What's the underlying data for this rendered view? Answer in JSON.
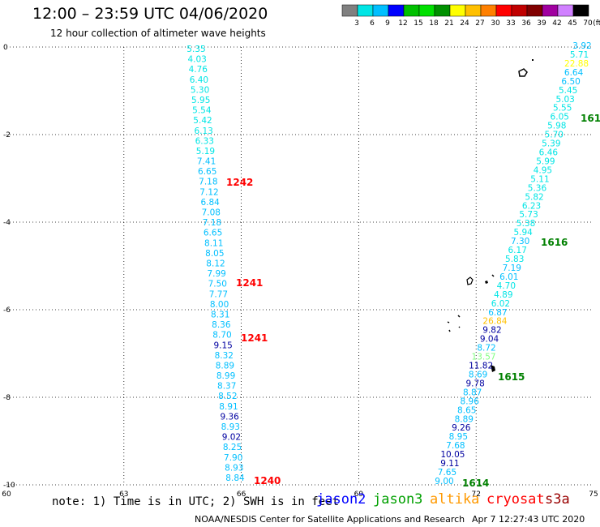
{
  "header": {
    "title": "12:00 – 23:59 UTC 04/06/2020",
    "subtitle": "12 hour collection of altimeter wave heights"
  },
  "legend": {
    "unit": "(ft)",
    "ticks": [
      "3",
      "6",
      "9",
      "12",
      "15",
      "18",
      "21",
      "24",
      "27",
      "30",
      "33",
      "36",
      "39",
      "42",
      "45",
      "70"
    ],
    "colors": [
      "#808080",
      "#00e5e5",
      "#00bfff",
      "#0000ff",
      "#00c000",
      "#00e000",
      "#009000",
      "#ffff00",
      "#ffc000",
      "#ff8000",
      "#ff0000",
      "#c00000",
      "#800000",
      "#a000a0",
      "#d080ff",
      "#000000"
    ]
  },
  "axes": {
    "x_ticks": [
      "60",
      "63",
      "66",
      "69",
      "72",
      "75"
    ],
    "y_ticks": [
      "0",
      "-2",
      "-4",
      "-6",
      "-8",
      "-10"
    ]
  },
  "tracks": [
    {
      "name": "left",
      "values": [
        "5.35",
        "4.03",
        "4.76",
        "6.40",
        "5.30",
        "5.95",
        "5.54",
        "5.42",
        "6.13",
        "6.33",
        "5.19",
        "7.41",
        "6.65",
        "7.18",
        "7.12",
        "6.84",
        "7.08",
        "7.18",
        "6.65",
        "8.11",
        "8.05",
        "8.12",
        "7.99",
        "7.50",
        "7.77",
        "8.00",
        "8.31",
        "8.36",
        "8.70",
        "9.15",
        "8.32",
        "8.89",
        "8.99",
        "8.37",
        "8.52",
        "8.91",
        "9.36",
        "8.93",
        "9.02",
        "8.25",
        "7.90",
        "8.93",
        "8.84"
      ],
      "colors": [
        "#00e5e5",
        "#00e5e5",
        "#00e5e5",
        "#00e5e5",
        "#00e5e5",
        "#00e5e5",
        "#00e5e5",
        "#00e5e5",
        "#00e5e5",
        "#00e5e5",
        "#00e5e5",
        "#00bfff",
        "#00bfff",
        "#00bfff",
        "#00bfff",
        "#00bfff",
        "#00bfff",
        "#00bfff",
        "#00bfff",
        "#00bfff",
        "#00bfff",
        "#00bfff",
        "#00bfff",
        "#00bfff",
        "#00bfff",
        "#00bfff",
        "#00bfff",
        "#00bfff",
        "#00bfff",
        "#0000a0",
        "#00bfff",
        "#00bfff",
        "#00bfff",
        "#00bfff",
        "#00bfff",
        "#00bfff",
        "#0000a0",
        "#00bfff",
        "#0000a0",
        "#00bfff",
        "#00bfff",
        "#00bfff",
        "#00bfff"
      ]
    },
    {
      "name": "right",
      "values": [
        "3.92",
        "5.71",
        "22.88",
        "6.64",
        "6.50",
        "5.45",
        "5.03",
        "5.55",
        "6.05",
        "5.98",
        "5.70",
        "5.39",
        "6.46",
        "5.99",
        "4.95",
        "5.11",
        "5.36",
        "5.82",
        "6.23",
        "5.73",
        "5.38",
        "5.94",
        "7.30",
        "6.17",
        "5.83",
        "7.19",
        "6.01",
        "4.70",
        "4.89",
        "6.02",
        "6.87",
        "26.84",
        "9.82",
        "9.04",
        "8.72",
        "13.57",
        "11.82",
        "8.69",
        "9.78",
        "8.87",
        "8.96",
        "8.65",
        "8.89",
        "9.26",
        "8.95",
        "7.68",
        "10.05",
        "9.11",
        "7.65",
        "9.00"
      ],
      "colors": [
        "#00bfff",
        "#00e5e5",
        "#ffff00",
        "#00bfff",
        "#00bfff",
        "#00e5e5",
        "#00e5e5",
        "#00e5e5",
        "#00e5e5",
        "#00e5e5",
        "#00e5e5",
        "#00e5e5",
        "#00e5e5",
        "#00e5e5",
        "#00e5e5",
        "#00e5e5",
        "#00e5e5",
        "#00e5e5",
        "#00e5e5",
        "#00e5e5",
        "#00e5e5",
        "#00e5e5",
        "#00bfff",
        "#00e5e5",
        "#00e5e5",
        "#00bfff",
        "#00bfff",
        "#00e5e5",
        "#00e5e5",
        "#00e5e5",
        "#00bfff",
        "#ffc000",
        "#0000a0",
        "#0000a0",
        "#00bfff",
        "#80ff80",
        "#0000a0",
        "#00bfff",
        "#0000a0",
        "#00bfff",
        "#00bfff",
        "#00bfff",
        "#00bfff",
        "#0000a0",
        "#00bfff",
        "#00bfff",
        "#0000a0",
        "#0000a0",
        "#00bfff",
        "#00bfff"
      ]
    }
  ],
  "time_labels": [
    {
      "text": "1242",
      "color": "#ff0000"
    },
    {
      "text": "1241",
      "color": "#ff0000"
    },
    {
      "text": "1241",
      "color": "#ff0000"
    },
    {
      "text": "1240",
      "color": "#ff0000"
    },
    {
      "text": "161",
      "color": "#008000"
    },
    {
      "text": "1616",
      "color": "#008000"
    },
    {
      "text": "1615",
      "color": "#008000"
    },
    {
      "text": "1614",
      "color": "#008000"
    }
  ],
  "footer": {
    "note": "note: 1) Time is in UTC; 2) SWH is in feet",
    "satellites": [
      {
        "name": "jason2",
        "color": "#0000ff"
      },
      {
        "name": "jason3",
        "color": "#00a000"
      },
      {
        "name": "altika",
        "color": "#ff9900"
      },
      {
        "name": "cryosat",
        "color": "#ff0000"
      },
      {
        "name": "s3a",
        "color": "#990000"
      }
    ],
    "credit": "NOAA/NESDIS Center for Satellite Applications and Research",
    "timestamp": "Apr  7 12:27:43 UTC 2020"
  }
}
